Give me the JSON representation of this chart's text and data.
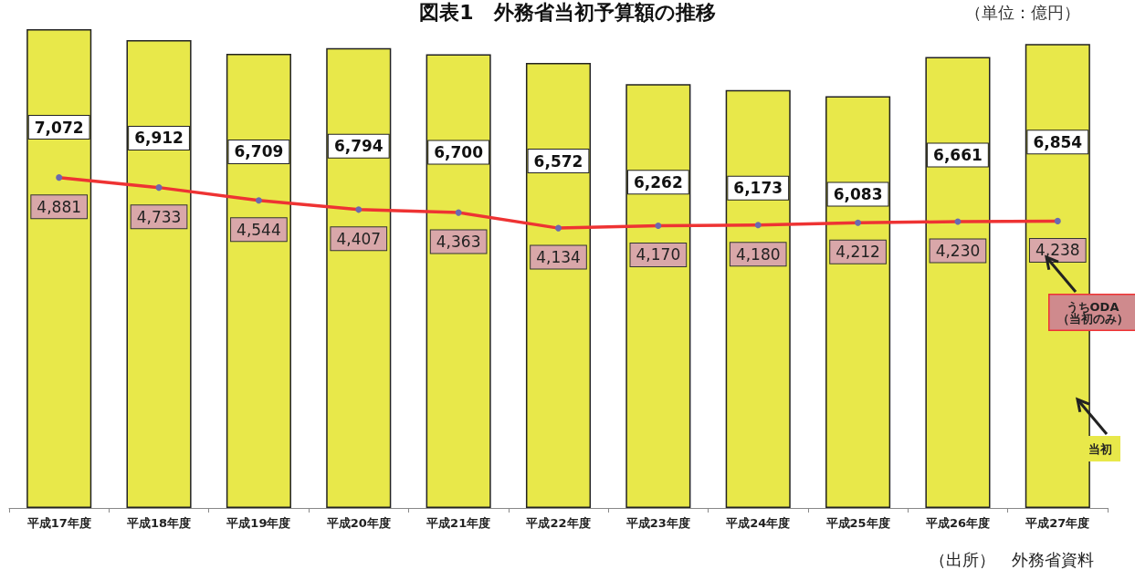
{
  "chart_data": {
    "type": "bar",
    "title": "図表1　外務省当初予算額の推移",
    "subtitle": "（単位：億円）",
    "categories": [
      "平成17年度",
      "平成18年度",
      "平成19年度",
      "平成20年度",
      "平成21年度",
      "平成22年度",
      "平成23年度",
      "平成24年度",
      "平成25年度",
      "平成26年度",
      "平成27年度"
    ],
    "series": [
      {
        "name": "当初",
        "color": "#e8e84a",
        "values": [
          7072,
          6912,
          6709,
          6794,
          6700,
          6572,
          6262,
          6173,
          6083,
          6661,
          6854
        ],
        "value_labels": [
          "7,072",
          "6,912",
          "6,709",
          "6,794",
          "6,700",
          "6,572",
          "6,262",
          "6,173",
          "6,083",
          "6,661",
          "6,854"
        ]
      },
      {
        "name": "うちODA\n（当初のみ）",
        "type": "line",
        "color": "#ee3333",
        "values": [
          4881,
          4733,
          4544,
          4407,
          4363,
          4134,
          4170,
          4180,
          4212,
          4230,
          4238
        ],
        "value_labels": [
          "4,881",
          "4,733",
          "4,544",
          "4,407",
          "4,363",
          "4,134",
          "4,170",
          "4,180",
          "4,212",
          "4,230",
          "4,238"
        ]
      }
    ],
    "marker": "circle",
    "legend": "right",
    "annotations": [
      "（出所）　外務省資料"
    ]
  }
}
